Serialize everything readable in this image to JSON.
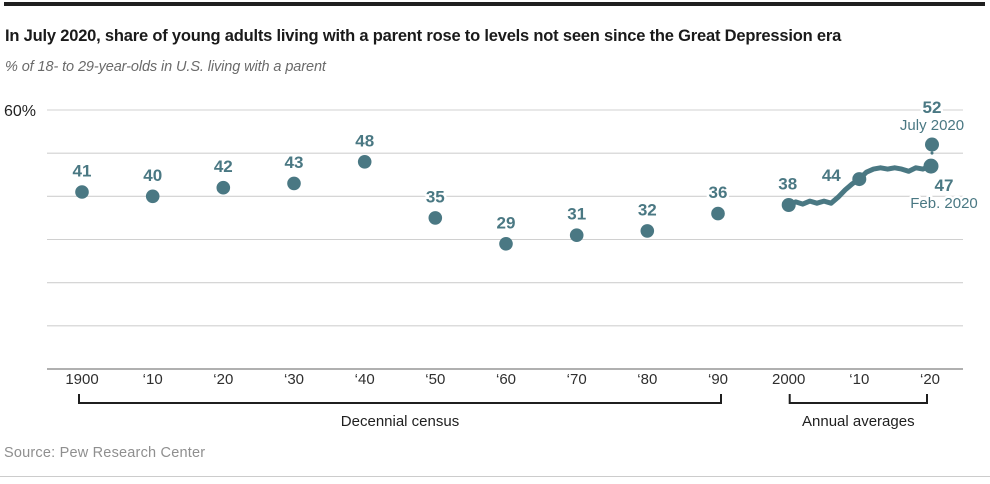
{
  "page": {
    "title": "In July 2020, share of young adults living with a parent rose to levels not seen since the Great Depression era",
    "subtitle": "% of 18- to 29-year-olds in U.S. living with a parent",
    "source": "Source: Pew Research Center"
  },
  "colors": {
    "accent": "#4a7883",
    "grid": "#d0d0d0",
    "axis": "#969696",
    "bracket": "#1f1f1f",
    "tick_text": "#2f2f2f",
    "halo": "#ffffff"
  },
  "chart_data": {
    "type": "scatter",
    "unit": "%",
    "ylim": [
      0,
      60
    ],
    "grid": true,
    "gridlines_pct": [
      60,
      50,
      40,
      30,
      20,
      10,
      0
    ],
    "y_top_label": "60%",
    "x_ticks": [
      {
        "year": 1900,
        "label": "1900"
      },
      {
        "year": 1910,
        "label": "‘10"
      },
      {
        "year": 1920,
        "label": "‘20"
      },
      {
        "year": 1930,
        "label": "‘30"
      },
      {
        "year": 1940,
        "label": "‘40"
      },
      {
        "year": 1950,
        "label": "‘50"
      },
      {
        "year": 1960,
        "label": "‘60"
      },
      {
        "year": 1970,
        "label": "‘70"
      },
      {
        "year": 1980,
        "label": "‘80"
      },
      {
        "year": 1990,
        "label": "‘90"
      },
      {
        "year": 2000,
        "label": "2000"
      },
      {
        "year": 2010,
        "label": "‘10"
      },
      {
        "year": 2020,
        "label": "‘20"
      }
    ],
    "decennial_series": {
      "name": "Decennial census",
      "points": [
        {
          "year": 1900,
          "value": 41
        },
        {
          "year": 1910,
          "value": 40
        },
        {
          "year": 1920,
          "value": 42
        },
        {
          "year": 1930,
          "value": 43
        },
        {
          "year": 1940,
          "value": 48
        },
        {
          "year": 1950,
          "value": 35
        },
        {
          "year": 1960,
          "value": 29
        },
        {
          "year": 1970,
          "value": 31
        },
        {
          "year": 1980,
          "value": 32
        },
        {
          "year": 1990,
          "value": 36
        }
      ]
    },
    "annual_series": {
      "name": "Annual averages",
      "years": [
        2000,
        2001,
        2002,
        2003,
        2004,
        2005,
        2006,
        2007,
        2008,
        2009,
        2010,
        2011,
        2012,
        2013,
        2014,
        2015,
        2016,
        2017,
        2018,
        2019,
        2020
      ],
      "values": [
        38,
        38.7,
        38.2,
        38.9,
        38.4,
        38.9,
        38.4,
        39.8,
        41.5,
        42.9,
        44,
        45.6,
        46.3,
        46.6,
        46.3,
        46.6,
        46.3,
        45.8,
        46.6,
        46.3,
        47
      ],
      "marked_points": [
        {
          "year": 2000,
          "value": 38,
          "label": "38"
        },
        {
          "year": 2010,
          "value": 44,
          "label": "44"
        }
      ]
    },
    "endpoint_annotations": [
      {
        "id": "july_2020",
        "value": 52,
        "value_label": "52",
        "date_label": "July 2020"
      },
      {
        "id": "feb_2020",
        "value": 47,
        "value_label": "47",
        "date_label": "Feb. 2020"
      }
    ],
    "brackets": [
      {
        "label": "Decennial census",
        "from_year": 1900,
        "to_year": 1990
      },
      {
        "label": "Annual averages",
        "from_year": 2000,
        "to_year": 2020
      }
    ]
  }
}
